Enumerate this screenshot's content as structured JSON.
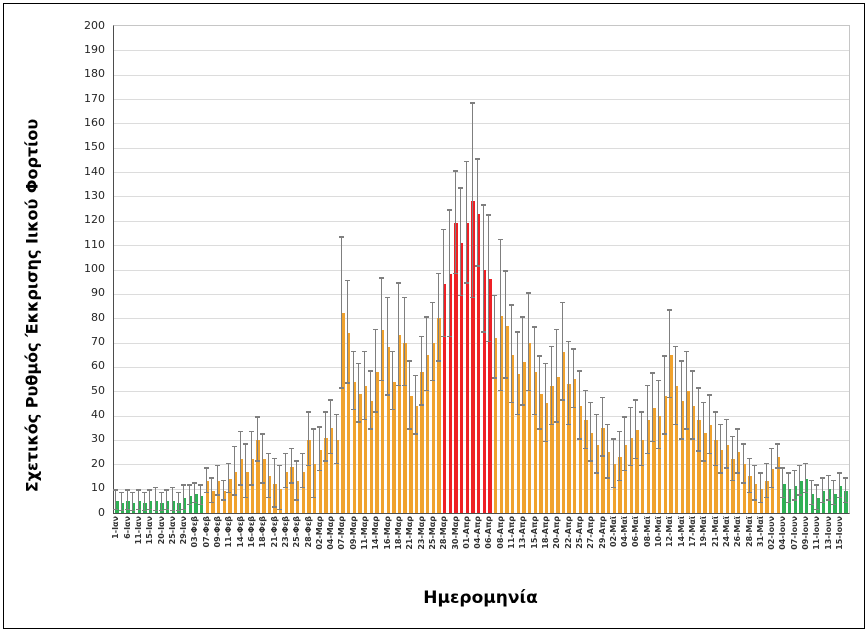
{
  "chart_data": {
    "type": "bar",
    "title": "",
    "xlabel": "Ημερομηνία",
    "ylabel": "Σχετικός Ρυθμός Έκκρισης Ιικού Φορτίου",
    "ylim": [
      0,
      200
    ],
    "y_ticks": [
      0,
      10,
      20,
      30,
      40,
      50,
      60,
      70,
      80,
      90,
      100,
      110,
      120,
      130,
      140,
      150,
      160,
      170,
      180,
      190,
      200
    ],
    "grid": true,
    "legend": "none",
    "error_bars": "symmetric, gray whiskers with caps",
    "label_every_n_bars": 2,
    "x_tick_labels": [
      "1-Ιαν",
      "6-Ιαν",
      "11-Ιαν",
      "15-Ιαν",
      "20-Ιαν",
      "25-Ιαν",
      "29-Ιαν",
      "03-Φεβ",
      "07-Φεβ",
      "09-Φεβ",
      "11-Φεβ",
      "14-Φεβ",
      "16-Φεβ",
      "18-Φεβ",
      "21-Φεβ",
      "23-Φεβ",
      "25-Φεβ",
      "28-Φεβ",
      "02-Μαρ",
      "04-Μαρ",
      "07-Μαρ",
      "09-Μαρ",
      "11-Μαρ",
      "14-Μαρ",
      "16-Μαρ",
      "18-Μαρ",
      "21-Μαρ",
      "23-Μαρ",
      "25-Μαρ",
      "28-Μαρ",
      "30-Μαρ",
      "01-Απρ",
      "04-Απρ",
      "06-Απρ",
      "08-Απρ",
      "11-Απρ",
      "13-Απρ",
      "15-Απρ",
      "18-Απρ",
      "20-Απρ",
      "22-Απρ",
      "25-Απρ",
      "27-Απρ",
      "29-Απρ",
      "02-Μαϊ",
      "04-Μαϊ",
      "06-Μαϊ",
      "08-Μαϊ",
      "10-Μαϊ",
      "12-Μαϊ",
      "14-Μαϊ",
      "17-Μαϊ",
      "19-Μαϊ",
      "21-Μαϊ",
      "24-Μαϊ",
      "26-Μαϊ",
      "28-Μαϊ",
      "31-Μαϊ",
      "02-Ιουν",
      "04-Ιουν",
      "07-Ιουν",
      "09-Ιουν",
      "11-Ιουν",
      "13-Ιουν",
      "15-Ιουν"
    ],
    "colors": {
      "green": "#2fb054",
      "orange": "#f0a22e",
      "red": "#ee2025",
      "error_bar": "#7f7f7f",
      "gridline": "#dcdcdc",
      "axis_line": "#4d4d4d"
    },
    "zones": [
      {
        "start": 0,
        "end": 15,
        "color_key": "green"
      },
      {
        "start": 16,
        "end": 57,
        "color_key": "orange"
      },
      {
        "start": 58,
        "end": 66,
        "color_key": "red"
      },
      {
        "start": 67,
        "end": 117,
        "color_key": "orange"
      },
      {
        "start": 118,
        "end": 129,
        "color_key": "green"
      }
    ],
    "bars_note": "each entry = [value, error_bar_top]; error bars symmetric about value",
    "bars": [
      [
        5,
        9
      ],
      [
        4,
        8
      ],
      [
        5,
        9
      ],
      [
        4,
        8
      ],
      [
        5,
        9
      ],
      [
        4,
        8
      ],
      [
        5,
        9
      ],
      [
        5,
        10
      ],
      [
        4,
        8
      ],
      [
        5,
        9
      ],
      [
        5,
        10
      ],
      [
        4,
        8
      ],
      [
        6,
        11
      ],
      [
        7,
        11
      ],
      [
        8,
        12
      ],
      [
        7,
        11
      ],
      [
        13,
        18
      ],
      [
        9,
        14
      ],
      [
        13,
        19
      ],
      [
        9,
        13
      ],
      [
        14,
        20
      ],
      [
        17,
        27
      ],
      [
        22,
        33
      ],
      [
        17,
        28
      ],
      [
        22,
        33
      ],
      [
        30,
        39
      ],
      [
        22,
        32
      ],
      [
        15,
        24
      ],
      [
        12,
        22
      ],
      [
        10,
        19
      ],
      [
        17,
        24
      ],
      [
        19,
        26
      ],
      [
        13,
        21
      ],
      [
        17,
        24
      ],
      [
        30,
        41
      ],
      [
        20,
        34
      ],
      [
        26,
        35
      ],
      [
        31,
        41
      ],
      [
        35,
        46
      ],
      [
        30,
        40
      ],
      [
        82,
        113
      ],
      [
        74,
        95
      ],
      [
        54,
        66
      ],
      [
        49,
        61
      ],
      [
        52,
        66
      ],
      [
        46,
        58
      ],
      [
        58,
        75
      ],
      [
        75,
        96
      ],
      [
        68,
        88
      ],
      [
        54,
        66
      ],
      [
        73,
        94
      ],
      [
        70,
        88
      ],
      [
        48,
        62
      ],
      [
        44,
        56
      ],
      [
        58,
        72
      ],
      [
        65,
        80
      ],
      [
        70,
        86
      ],
      [
        80,
        98
      ],
      [
        94,
        116
      ],
      [
        98,
        124
      ],
      [
        119,
        140
      ],
      [
        111,
        133
      ],
      [
        119,
        144
      ],
      [
        128,
        168
      ],
      [
        123,
        145
      ],
      [
        100,
        126
      ],
      [
        96,
        122
      ],
      [
        72,
        89
      ],
      [
        81,
        112
      ],
      [
        77,
        99
      ],
      [
        65,
        85
      ],
      [
        57,
        74
      ],
      [
        62,
        80
      ],
      [
        70,
        90
      ],
      [
        58,
        76
      ],
      [
        49,
        64
      ],
      [
        45,
        61
      ],
      [
        52,
        68
      ],
      [
        56,
        75
      ],
      [
        66,
        86
      ],
      [
        53,
        70
      ],
      [
        55,
        67
      ],
      [
        44,
        58
      ],
      [
        38,
        50
      ],
      [
        33,
        45
      ],
      [
        28,
        40
      ],
      [
        35,
        47
      ],
      [
        25,
        36
      ],
      [
        20,
        30
      ],
      [
        23,
        33
      ],
      [
        28,
        39
      ],
      [
        31,
        43
      ],
      [
        34,
        46
      ],
      [
        30,
        41
      ],
      [
        38,
        52
      ],
      [
        43,
        57
      ],
      [
        40,
        54
      ],
      [
        48,
        64
      ],
      [
        65,
        83
      ],
      [
        52,
        68
      ],
      [
        46,
        62
      ],
      [
        50,
        66
      ],
      [
        44,
        58
      ],
      [
        38,
        51
      ],
      [
        33,
        45
      ],
      [
        36,
        48
      ],
      [
        30,
        41
      ],
      [
        26,
        36
      ],
      [
        28,
        38
      ],
      [
        22,
        31
      ],
      [
        25,
        34
      ],
      [
        20,
        28
      ],
      [
        15,
        22
      ],
      [
        12,
        19
      ],
      [
        10,
        16
      ],
      [
        13,
        20
      ],
      [
        18,
        26
      ],
      [
        23,
        28
      ],
      [
        12,
        18
      ],
      [
        10,
        16
      ],
      [
        11,
        17
      ],
      [
        13,
        19
      ],
      [
        14,
        20
      ],
      [
        8,
        13
      ],
      [
        6,
        11
      ],
      [
        9,
        14
      ],
      [
        10,
        15
      ],
      [
        8,
        13
      ],
      [
        11,
        16
      ],
      [
        9,
        14
      ]
    ]
  }
}
